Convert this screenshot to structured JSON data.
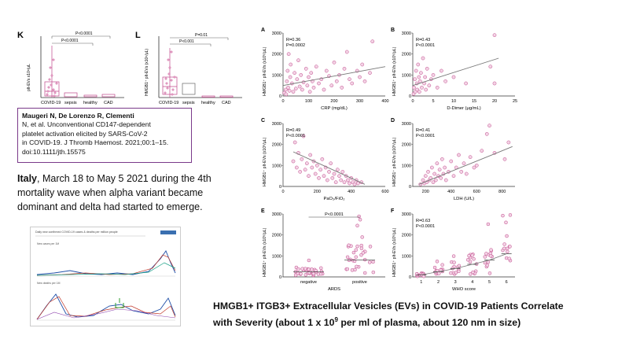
{
  "citation": {
    "line1": "Maugeri N, De Lorenzo R, Clementi",
    "line2": "N, et al.  Unconventional  CD147-dependent",
    "line3": "platelet  activation  elicited by SARS-CoV-2",
    "line4": "in COVID-19. J Thromb Haemost. 2021;00:1–15.",
    "line5": "doi:10.1111/jth.15575"
  },
  "context": {
    "country": "Italy",
    "line1_rest": ", March 18 to May 5 2021  during the 4th",
    "line2": "mortality wave when alpha variant became",
    "line3": "dominant and delta had started to emerge."
  },
  "headline": {
    "line1": "HMGB1+ ITGB3+ Extracellular Vesicles (EVs) in COVID-19 Patients Correlate",
    "line2_a": "with Severity (about 1 x 10",
    "line2_sup": "9",
    "line2_b": " per ml of plasma, about 120 nm in size)"
  },
  "thumbnail": {
    "title": "Daily new confirmed COVID-19 cases & deaths per million people",
    "panel1": "New cases per 1M",
    "panel2": "New deaths per 1M"
  },
  "colors": {
    "accent": "#c0488a",
    "trend": "#777777",
    "frame": "#7a3a8a"
  },
  "chart_data": [
    {
      "panel": "K",
      "type": "box",
      "ylabel": "pIt-EVs x10⁶/μL",
      "categories": [
        "COVID-19",
        "sepsis",
        "healthy",
        "CAD"
      ],
      "annotations": [
        "P<0.0001",
        "P<0.0001"
      ],
      "series": [
        {
          "values_median": [
            180,
            90,
            40,
            50
          ]
        }
      ]
    },
    {
      "panel": "L",
      "type": "box",
      "ylabel": "HMGB1⁺ pIt-EVs (x10⁶/μL)",
      "categories": [
        "COVID-19",
        "sepsis",
        "healthy",
        "CAD"
      ],
      "annotations": [
        "P=0.01",
        "P<0.001"
      ],
      "series": [
        {
          "values_median": [
            500,
            400,
            40,
            40
          ]
        }
      ]
    },
    {
      "panel": "A",
      "type": "scatter",
      "ylabel": "HMGB1⁺ pIt-EVs (x10⁶/μL)",
      "xlabel": "CRP (mg/dL)",
      "xlim": [
        0,
        400
      ],
      "ylim": [
        0,
        3000
      ],
      "xticks": [
        0,
        100,
        200,
        300,
        400
      ],
      "yticks": [
        0,
        1000,
        2000,
        3000
      ],
      "stats": [
        "R=0.36",
        "P=0.0002"
      ],
      "trend": [
        [
          0,
          500
        ],
        [
          400,
          1400
        ]
      ],
      "points": [
        [
          5,
          150
        ],
        [
          10,
          300
        ],
        [
          12,
          80
        ],
        [
          15,
          700
        ],
        [
          18,
          1200
        ],
        [
          20,
          400
        ],
        [
          22,
          2000
        ],
        [
          25,
          250
        ],
        [
          28,
          900
        ],
        [
          30,
          1500
        ],
        [
          35,
          600
        ],
        [
          40,
          200
        ],
        [
          45,
          1100
        ],
        [
          50,
          350
        ],
        [
          55,
          800
        ],
        [
          60,
          1700
        ],
        [
          65,
          450
        ],
        [
          70,
          1000
        ],
        [
          75,
          300
        ],
        [
          80,
          650
        ],
        [
          90,
          1300
        ],
        [
          95,
          500
        ],
        [
          100,
          900
        ],
        [
          105,
          200
        ],
        [
          110,
          1100
        ],
        [
          115,
          700
        ],
        [
          120,
          400
        ],
        [
          130,
          1400
        ],
        [
          140,
          600
        ],
        [
          150,
          800
        ],
        [
          160,
          300
        ],
        [
          170,
          1200
        ],
        [
          180,
          950
        ],
        [
          190,
          500
        ],
        [
          200,
          1600
        ],
        [
          210,
          700
        ],
        [
          220,
          1000
        ],
        [
          230,
          400
        ],
        [
          240,
          1300
        ],
        [
          250,
          2100
        ],
        [
          260,
          800
        ],
        [
          270,
          600
        ],
        [
          290,
          1200
        ],
        [
          300,
          900
        ],
        [
          310,
          1500
        ],
        [
          320,
          700
        ],
        [
          340,
          1100
        ],
        [
          350,
          2600
        ]
      ]
    },
    {
      "panel": "B",
      "type": "scatter",
      "ylabel": "HMGB1⁺ pIt-EVs (x10⁶/μL)",
      "xlabel": "D-Dimer (μg/mL)",
      "xlim": [
        0,
        25
      ],
      "ylim": [
        0,
        3000
      ],
      "xticks": [
        0,
        5,
        10,
        15,
        20,
        25
      ],
      "yticks": [
        0,
        1000,
        2000,
        3000
      ],
      "stats": [
        "R=0.43",
        "P<0.0001"
      ],
      "trend": [
        [
          0,
          500
        ],
        [
          21,
          1800
        ]
      ],
      "points": [
        [
          0.2,
          100
        ],
        [
          0.3,
          400
        ],
        [
          0.5,
          800
        ],
        [
          0.6,
          200
        ],
        [
          0.8,
          1200
        ],
        [
          1,
          600
        ],
        [
          1.1,
          300
        ],
        [
          1.3,
          1500
        ],
        [
          1.5,
          900
        ],
        [
          1.6,
          200
        ],
        [
          1.8,
          700
        ],
        [
          2,
          1100
        ],
        [
          2.2,
          400
        ],
        [
          2.5,
          1800
        ],
        [
          2.8,
          600
        ],
        [
          3,
          900
        ],
        [
          3.2,
          300
        ],
        [
          3.5,
          1300
        ],
        [
          4,
          500
        ],
        [
          4.5,
          800
        ],
        [
          5,
          1000
        ],
        [
          6,
          400
        ],
        [
          7,
          1200
        ],
        [
          8,
          700
        ],
        [
          10,
          900
        ],
        [
          13,
          600
        ],
        [
          19,
          1400
        ],
        [
          20,
          600
        ],
        [
          20,
          2900
        ]
      ]
    },
    {
      "panel": "C",
      "type": "scatter",
      "ylabel": "HMGB1⁺ pIt-EVs (x10⁶/μL)",
      "xlabel": "PaO₂/FiO₂",
      "xlim": [
        0,
        600
      ],
      "ylim": [
        0,
        3000
      ],
      "xticks": [
        0,
        200,
        400,
        600
      ],
      "yticks": [
        0,
        1000,
        2000,
        3000
      ],
      "stats": [
        "R=0.49",
        "P<0.0001"
      ],
      "trend": [
        [
          60,
          1650
        ],
        [
          480,
          100
        ]
      ],
      "points": [
        [
          60,
          1200
        ],
        [
          70,
          2100
        ],
        [
          80,
          900
        ],
        [
          90,
          1600
        ],
        [
          100,
          700
        ],
        [
          110,
          1300
        ],
        [
          120,
          2400
        ],
        [
          130,
          800
        ],
        [
          140,
          1100
        ],
        [
          150,
          500
        ],
        [
          160,
          1500
        ],
        [
          170,
          900
        ],
        [
          180,
          1200
        ],
        [
          190,
          600
        ],
        [
          200,
          1000
        ],
        [
          210,
          400
        ],
        [
          220,
          800
        ],
        [
          230,
          1300
        ],
        [
          240,
          500
        ],
        [
          250,
          900
        ],
        [
          260,
          300
        ],
        [
          270,
          700
        ],
        [
          280,
          1100
        ],
        [
          290,
          400
        ],
        [
          300,
          600
        ],
        [
          310,
          200
        ],
        [
          320,
          800
        ],
        [
          330,
          500
        ],
        [
          340,
          300
        ],
        [
          350,
          700
        ],
        [
          360,
          200
        ],
        [
          370,
          500
        ],
        [
          380,
          300
        ],
        [
          390,
          150
        ],
        [
          400,
          400
        ],
        [
          410,
          200
        ],
        [
          420,
          100
        ],
        [
          430,
          300
        ],
        [
          440,
          150
        ],
        [
          460,
          200
        ]
      ]
    },
    {
      "panel": "D",
      "type": "scatter",
      "ylabel": "HMGB1⁺ pIt-EVs (x10⁶/μL)",
      "xlabel": "LDH (U/L)",
      "xlim": [
        100,
        900
      ],
      "ylim": [
        0,
        3000
      ],
      "xticks": [
        200,
        400,
        600,
        800
      ],
      "yticks": [
        0,
        1000,
        2000,
        3000
      ],
      "stats": [
        "R=0.41",
        "P<0.0001"
      ],
      "trend": [
        [
          150,
          100
        ],
        [
          880,
          1900
        ]
      ],
      "points": [
        [
          160,
          100
        ],
        [
          180,
          300
        ],
        [
          190,
          150
        ],
        [
          200,
          500
        ],
        [
          210,
          200
        ],
        [
          220,
          700
        ],
        [
          230,
          300
        ],
        [
          240,
          400
        ],
        [
          250,
          900
        ],
        [
          260,
          200
        ],
        [
          270,
          600
        ],
        [
          280,
          300
        ],
        [
          290,
          1100
        ],
        [
          300,
          500
        ],
        [
          310,
          800
        ],
        [
          320,
          400
        ],
        [
          330,
          1300
        ],
        [
          340,
          600
        ],
        [
          350,
          900
        ],
        [
          360,
          300
        ],
        [
          380,
          700
        ],
        [
          400,
          1200
        ],
        [
          420,
          500
        ],
        [
          440,
          900
        ],
        [
          460,
          1500
        ],
        [
          480,
          700
        ],
        [
          500,
          1100
        ],
        [
          520,
          600
        ],
        [
          550,
          1400
        ],
        [
          580,
          900
        ],
        [
          600,
          1000
        ],
        [
          640,
          1700
        ],
        [
          680,
          2500
        ],
        [
          700,
          2900
        ],
        [
          740,
          1600
        ],
        [
          820,
          1300
        ],
        [
          850,
          2100
        ]
      ]
    },
    {
      "panel": "E",
      "type": "dot",
      "ylabel": "HMGB1⁺ pIt-EVs (x10⁶/μL)",
      "xlabel": "ARDS",
      "categories": [
        "negative",
        "positive"
      ],
      "ylim": [
        0,
        3000
      ],
      "yticks": [
        0,
        1000,
        2000,
        3000
      ],
      "annotations": [
        "P<0.0001"
      ],
      "series": [
        {
          "name": "",
          "medians": [
            250,
            800
          ]
        }
      ]
    },
    {
      "panel": "F",
      "type": "dot",
      "ylabel": "HMGB1⁺ pIt-EVs (x10⁶/μL)",
      "xlabel": "WHO score",
      "categories": [
        "1",
        "2",
        "3",
        "4",
        "5",
        "6"
      ],
      "ylim": [
        0,
        3000
      ],
      "yticks": [
        0,
        1000,
        2000,
        3000
      ],
      "stats": [
        "R=0.63",
        "P<0.0001"
      ],
      "series": [
        {
          "medians": [
            100,
            250,
            400,
            600,
            800,
            1100
          ]
        }
      ]
    }
  ]
}
